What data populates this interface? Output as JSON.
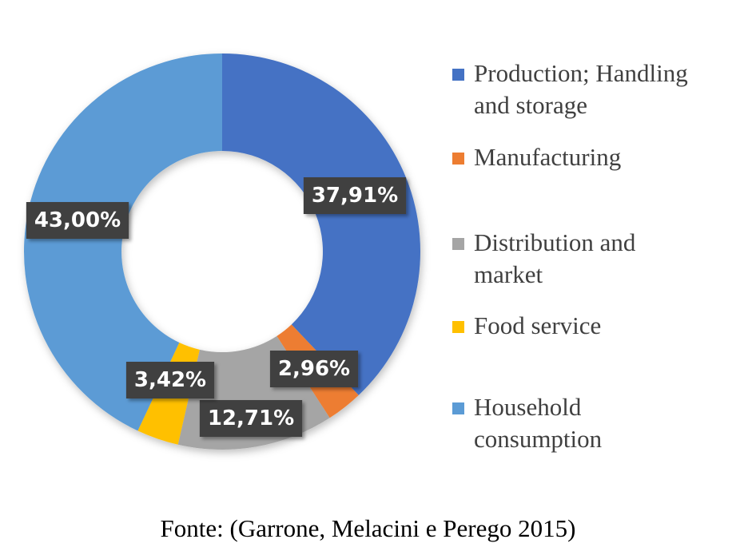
{
  "chart_data": {
    "type": "pie",
    "style": "doughnut",
    "title": "",
    "slices": [
      {
        "label": "Production; Handling and storage",
        "value": 37.91,
        "display": "37,91%",
        "color": "#4472C4"
      },
      {
        "label": "Manufacturing",
        "value": 2.96,
        "display": "2,96%",
        "color": "#ED7D31"
      },
      {
        "label": "Distribution and market",
        "value": 12.71,
        "display": "12,71%",
        "color": "#A5A5A5"
      },
      {
        "label": "Food service",
        "value": 3.42,
        "display": "3,42%",
        "color": "#FFC000"
      },
      {
        "label": "Household consumption",
        "value": 43.0,
        "display": "43,00%",
        "color": "#5B9BD5"
      }
    ],
    "legend": {
      "placement": "right",
      "lines": [
        [
          "Production; Handling",
          "and storage"
        ],
        [
          "Manufacturing"
        ],
        [
          "Distribution and",
          "market"
        ],
        [
          "Food service"
        ],
        [
          "Household",
          "consumption"
        ]
      ]
    },
    "data_label_style": {
      "background": "#404040",
      "text_color": "#FFFFFF"
    }
  },
  "source_note": "Fonte: (Garrone, Melacini e Perego 2015)"
}
